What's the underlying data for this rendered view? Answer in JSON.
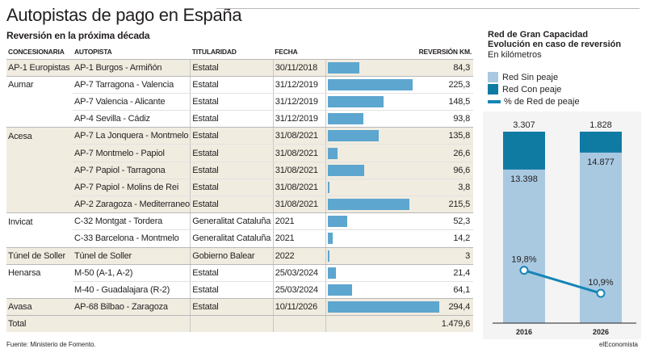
{
  "title": "Autopistas de pago en España",
  "subtitle": "Reversión en la próxima década",
  "table": {
    "headers": {
      "concesionaria": "CONCESIONARIA",
      "autopista": "AUTOPISTA",
      "titularidad": "TITULARIDAD",
      "fecha": "FECHA",
      "reversion": "REVERSIÓN KM."
    },
    "rows": [
      {
        "concesionaria": "AP-1 Europistas",
        "autopista": "AP-1 Burgos - Armiñón",
        "titularidad": "Estatal",
        "fecha": "30/11/2018",
        "reversion": "84,3",
        "km": 84.3
      },
      {
        "concesionaria": "Aumar",
        "autopista": "AP-7 Tarragona - Valencia",
        "titularidad": "Estatal",
        "fecha": "31/12/2019",
        "reversion": "225,3",
        "km": 225.3
      },
      {
        "concesionaria": "",
        "autopista": "AP-7 Valencia - Alicante",
        "titularidad": "Estatal",
        "fecha": "31/12/2019",
        "reversion": "148,5",
        "km": 148.5
      },
      {
        "concesionaria": "",
        "autopista": "AP-4 Sevilla - Cádiz",
        "titularidad": "Estatal",
        "fecha": "31/12/2019",
        "reversion": "93,8",
        "km": 93.8
      },
      {
        "concesionaria": "Acesa",
        "autopista": "AP-7 La Jonquera - Montmelo",
        "titularidad": "Estatal",
        "fecha": "31/08/2021",
        "reversion": "135,8",
        "km": 135.8
      },
      {
        "concesionaria": "",
        "autopista": "AP-7 Montmelo - Papiol",
        "titularidad": "Estatal",
        "fecha": "31/08/2021",
        "reversion": "26,6",
        "km": 26.6
      },
      {
        "concesionaria": "",
        "autopista": "AP-7 Papiol - Tarragona",
        "titularidad": "Estatal",
        "fecha": "31/08/2021",
        "reversion": "96,6",
        "km": 96.6
      },
      {
        "concesionaria": "",
        "autopista": "AP-7 Papiol - Molins de Rei",
        "titularidad": "Estatal",
        "fecha": "31/08/2021",
        "reversion": "3,8",
        "km": 3.8
      },
      {
        "concesionaria": "",
        "autopista": "AP-2 Zaragoza - Mediterraneo",
        "titularidad": "Estatal",
        "fecha": "31/08/2021",
        "reversion": "215,5",
        "km": 215.5
      },
      {
        "concesionaria": "Invicat",
        "autopista": "C-32 Montgat - Tordera",
        "titularidad": "Generalitat Cataluña",
        "fecha": "2021",
        "reversion": "52,3",
        "km": 52.3
      },
      {
        "concesionaria": "",
        "autopista": "C-33 Barcelona - Montmelo",
        "titularidad": "Generalitat Cataluña",
        "fecha": "2021",
        "reversion": "14,2",
        "km": 14.2
      },
      {
        "concesionaria": "Túnel de Soller",
        "autopista": "Túnel de Soller",
        "titularidad": "Gobierno Balear",
        "fecha": "2022",
        "reversion": "3",
        "km": 3
      },
      {
        "concesionaria": "Henarsa",
        "autopista": "M-50 (A-1, A-2)",
        "titularidad": "Estatal",
        "fecha": "25/03/2024",
        "reversion": "21,4",
        "km": 21.4
      },
      {
        "concesionaria": "",
        "autopista": "M-40 - Guadalajara (R-2)",
        "titularidad": "Estatal",
        "fecha": "25/03/2024",
        "reversion": "64,1",
        "km": 64.1
      },
      {
        "concesionaria": "Avasa",
        "autopista": "AP-68 Bilbao - Zaragoza",
        "titularidad": "Estatal",
        "fecha": "10/11/2026",
        "reversion": "294,4",
        "km": 294.4
      }
    ],
    "total_label": "Total",
    "total_value": "1.479,6"
  },
  "chart_data": {
    "type": "bar",
    "title": "Red de Gran Capacidad",
    "subtitle": "Evolución en caso de reversión",
    "unit": "En kilómetros",
    "categories": [
      "2016",
      "2026"
    ],
    "series": [
      {
        "name": "Red Sin peaje",
        "values": [
          13398,
          14877
        ],
        "labels": [
          "13.398",
          "14.877"
        ]
      },
      {
        "name": "Red Con peaje",
        "values": [
          3307,
          1828
        ],
        "labels": [
          "3.307",
          "1.828"
        ]
      },
      {
        "name": "% de Red de peaje",
        "values": [
          19.8,
          10.9
        ],
        "labels": [
          "19,8%",
          "10,9%"
        ]
      }
    ],
    "colors": {
      "sin_peaje": "#a9c9e1",
      "con_peaje": "#0f7ba3",
      "line": "#1585b5"
    }
  },
  "table_bar_color": "#5da6cf",
  "source": "Fuente: Ministerio de Fomento.",
  "credit": "elEconomista"
}
